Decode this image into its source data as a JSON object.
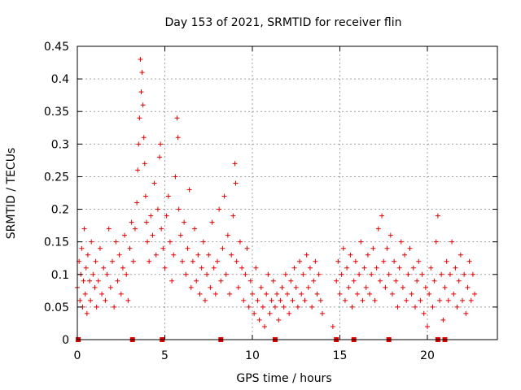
{
  "chart_data": {
    "type": "scatter",
    "title": "Day 153 of 2021, SRMTID for receiver flin",
    "xlabel": "GPS time / hours",
    "ylabel": "SRMTID / TECUs",
    "xlim": [
      0,
      24
    ],
    "ylim": [
      0,
      0.45
    ],
    "xticks": [
      0,
      5,
      10,
      15,
      20
    ],
    "xtick_labels": [
      "0",
      "5",
      "10",
      "15",
      "20"
    ],
    "yticks": [
      0,
      0.05,
      0.1,
      0.15,
      0.2,
      0.25,
      0.3,
      0.35,
      0.4,
      0.45
    ],
    "ytick_labels": [
      "0",
      "0.05",
      "0.1",
      "0.15",
      "0.2",
      "0.25",
      "0.3",
      "0.35",
      "0.4",
      "0.45"
    ],
    "grid": true,
    "marker": "plus",
    "color": "#e00000",
    "zero_markers_x": [
      0.05,
      3.15,
      4.85,
      8.2,
      11.3,
      14.8,
      15.8,
      17.8,
      20.6,
      21.0
    ],
    "series": [
      {
        "name": "SRMTID",
        "points": [
          [
            0.0,
            0.08
          ],
          [
            0.1,
            0.12
          ],
          [
            0.15,
            0.06
          ],
          [
            0.2,
            0.1
          ],
          [
            0.25,
            0.14
          ],
          [
            0.3,
            0.05
          ],
          [
            0.35,
            0.09
          ],
          [
            0.4,
            0.17
          ],
          [
            0.45,
            0.07
          ],
          [
            0.5,
            0.11
          ],
          [
            0.55,
            0.04
          ],
          [
            0.6,
            0.13
          ],
          [
            0.7,
            0.09
          ],
          [
            0.75,
            0.06
          ],
          [
            0.8,
            0.15
          ],
          [
            0.9,
            0.1
          ],
          [
            1.0,
            0.08
          ],
          [
            1.05,
            0.12
          ],
          [
            1.1,
            0.05
          ],
          [
            1.2,
            0.09
          ],
          [
            1.3,
            0.14
          ],
          [
            1.4,
            0.07
          ],
          [
            1.5,
            0.11
          ],
          [
            1.6,
            0.06
          ],
          [
            1.7,
            0.1
          ],
          [
            1.8,
            0.17
          ],
          [
            1.9,
            0.08
          ],
          [
            2.0,
            0.12
          ],
          [
            2.1,
            0.05
          ],
          [
            2.2,
            0.15
          ],
          [
            2.3,
            0.09
          ],
          [
            2.4,
            0.13
          ],
          [
            2.5,
            0.07
          ],
          [
            2.6,
            0.11
          ],
          [
            2.7,
            0.16
          ],
          [
            2.8,
            0.1
          ],
          [
            2.9,
            0.06
          ],
          [
            3.0,
            0.14
          ],
          [
            3.1,
            0.18
          ],
          [
            3.2,
            0.12
          ],
          [
            3.3,
            0.17
          ],
          [
            3.4,
            0.21
          ],
          [
            3.45,
            0.26
          ],
          [
            3.5,
            0.3
          ],
          [
            3.55,
            0.34
          ],
          [
            3.6,
            0.43
          ],
          [
            3.65,
            0.38
          ],
          [
            3.7,
            0.41
          ],
          [
            3.75,
            0.36
          ],
          [
            3.8,
            0.31
          ],
          [
            3.85,
            0.27
          ],
          [
            3.9,
            0.22
          ],
          [
            3.95,
            0.18
          ],
          [
            4.0,
            0.15
          ],
          [
            4.1,
            0.12
          ],
          [
            4.2,
            0.19
          ],
          [
            4.3,
            0.16
          ],
          [
            4.4,
            0.24
          ],
          [
            4.5,
            0.13
          ],
          [
            4.6,
            0.2
          ],
          [
            4.7,
            0.28
          ],
          [
            4.75,
            0.3
          ],
          [
            4.8,
            0.17
          ],
          [
            4.9,
            0.14
          ],
          [
            5.0,
            0.11
          ],
          [
            5.1,
            0.19
          ],
          [
            5.2,
            0.22
          ],
          [
            5.3,
            0.15
          ],
          [
            5.4,
            0.09
          ],
          [
            5.5,
            0.13
          ],
          [
            5.6,
            0.25
          ],
          [
            5.7,
            0.34
          ],
          [
            5.75,
            0.31
          ],
          [
            5.8,
            0.2
          ],
          [
            5.9,
            0.16
          ],
          [
            6.0,
            0.12
          ],
          [
            6.1,
            0.18
          ],
          [
            6.2,
            0.1
          ],
          [
            6.3,
            0.14
          ],
          [
            6.4,
            0.23
          ],
          [
            6.5,
            0.08
          ],
          [
            6.6,
            0.12
          ],
          [
            6.7,
            0.17
          ],
          [
            6.8,
            0.09
          ],
          [
            6.9,
            0.13
          ],
          [
            7.0,
            0.07
          ],
          [
            7.1,
            0.11
          ],
          [
            7.2,
            0.15
          ],
          [
            7.3,
            0.06
          ],
          [
            7.4,
            0.1
          ],
          [
            7.5,
            0.13
          ],
          [
            7.6,
            0.08
          ],
          [
            7.7,
            0.18
          ],
          [
            7.8,
            0.11
          ],
          [
            7.9,
            0.07
          ],
          [
            8.0,
            0.12
          ],
          [
            8.1,
            0.2
          ],
          [
            8.2,
            0.09
          ],
          [
            8.3,
            0.14
          ],
          [
            8.4,
            0.22
          ],
          [
            8.5,
            0.1
          ],
          [
            8.6,
            0.16
          ],
          [
            8.7,
            0.07
          ],
          [
            8.8,
            0.13
          ],
          [
            8.9,
            0.19
          ],
          [
            9.0,
            0.27
          ],
          [
            9.05,
            0.24
          ],
          [
            9.1,
            0.12
          ],
          [
            9.2,
            0.08
          ],
          [
            9.3,
            0.15
          ],
          [
            9.4,
            0.11
          ],
          [
            9.5,
            0.06
          ],
          [
            9.6,
            0.1
          ],
          [
            9.7,
            0.14
          ],
          [
            9.8,
            0.05
          ],
          [
            9.9,
            0.09
          ],
          [
            10.0,
            0.07
          ],
          [
            10.1,
            0.04
          ],
          [
            10.2,
            0.11
          ],
          [
            10.3,
            0.06
          ],
          [
            10.4,
            0.03
          ],
          [
            10.5,
            0.08
          ],
          [
            10.6,
            0.05
          ],
          [
            10.7,
            0.02
          ],
          [
            10.8,
            0.07
          ],
          [
            10.9,
            0.1
          ],
          [
            11.0,
            0.04
          ],
          [
            11.1,
            0.06
          ],
          [
            11.2,
            0.09
          ],
          [
            11.3,
            0.05
          ],
          [
            11.4,
            0.07
          ],
          [
            11.5,
            0.03
          ],
          [
            11.6,
            0.06
          ],
          [
            11.7,
            0.08
          ],
          [
            11.8,
            0.05
          ],
          [
            11.9,
            0.1
          ],
          [
            12.0,
            0.07
          ],
          [
            12.1,
            0.04
          ],
          [
            12.2,
            0.09
          ],
          [
            12.3,
            0.06
          ],
          [
            12.4,
            0.11
          ],
          [
            12.5,
            0.08
          ],
          [
            12.6,
            0.05
          ],
          [
            12.7,
            0.12
          ],
          [
            12.8,
            0.07
          ],
          [
            12.9,
            0.1
          ],
          [
            13.0,
            0.06
          ],
          [
            13.1,
            0.13
          ],
          [
            13.2,
            0.08
          ],
          [
            13.3,
            0.11
          ],
          [
            13.4,
            0.05
          ],
          [
            13.5,
            0.09
          ],
          [
            13.6,
            0.12
          ],
          [
            13.7,
            0.07
          ],
          [
            13.8,
            0.1
          ],
          [
            13.9,
            0.06
          ],
          [
            14.0,
            0.04
          ],
          [
            14.6,
            0.02
          ],
          [
            14.8,
            0.09
          ],
          [
            14.9,
            0.12
          ],
          [
            15.0,
            0.07
          ],
          [
            15.1,
            0.1
          ],
          [
            15.2,
            0.14
          ],
          [
            15.3,
            0.06
          ],
          [
            15.4,
            0.11
          ],
          [
            15.5,
            0.08
          ],
          [
            15.6,
            0.13
          ],
          [
            15.7,
            0.05
          ],
          [
            15.8,
            0.09
          ],
          [
            15.9,
            0.12
          ],
          [
            16.0,
            0.07
          ],
          [
            16.1,
            0.1
          ],
          [
            16.2,
            0.15
          ],
          [
            16.3,
            0.06
          ],
          [
            16.4,
            0.11
          ],
          [
            16.5,
            0.08
          ],
          [
            16.6,
            0.13
          ],
          [
            16.7,
            0.07
          ],
          [
            16.8,
            0.1
          ],
          [
            16.9,
            0.14
          ],
          [
            17.0,
            0.06
          ],
          [
            17.1,
            0.11
          ],
          [
            17.2,
            0.17
          ],
          [
            17.3,
            0.09
          ],
          [
            17.4,
            0.19
          ],
          [
            17.5,
            0.12
          ],
          [
            17.6,
            0.08
          ],
          [
            17.7,
            0.14
          ],
          [
            17.8,
            0.1
          ],
          [
            17.9,
            0.16
          ],
          [
            18.0,
            0.07
          ],
          [
            18.1,
            0.12
          ],
          [
            18.2,
            0.09
          ],
          [
            18.3,
            0.05
          ],
          [
            18.4,
            0.11
          ],
          [
            18.5,
            0.15
          ],
          [
            18.6,
            0.08
          ],
          [
            18.7,
            0.13
          ],
          [
            18.8,
            0.06
          ],
          [
            18.9,
            0.1
          ],
          [
            19.0,
            0.14
          ],
          [
            19.1,
            0.07
          ],
          [
            19.2,
            0.11
          ],
          [
            19.3,
            0.05
          ],
          [
            19.4,
            0.09
          ],
          [
            19.5,
            0.12
          ],
          [
            19.6,
            0.06
          ],
          [
            19.7,
            0.1
          ],
          [
            19.8,
            0.04
          ],
          [
            19.9,
            0.08
          ],
          [
            20.0,
            0.02
          ],
          [
            20.1,
            0.07
          ],
          [
            20.2,
            0.11
          ],
          [
            20.3,
            0.05
          ],
          [
            20.4,
            0.09
          ],
          [
            20.5,
            0.15
          ],
          [
            20.6,
            0.19
          ],
          [
            20.7,
            0.06
          ],
          [
            20.8,
            0.1
          ],
          [
            20.9,
            0.03
          ],
          [
            21.0,
            0.08
          ],
          [
            21.1,
            0.12
          ],
          [
            21.2,
            0.06
          ],
          [
            21.3,
            0.1
          ],
          [
            21.4,
            0.15
          ],
          [
            21.5,
            0.07
          ],
          [
            21.6,
            0.11
          ],
          [
            21.7,
            0.05
          ],
          [
            21.8,
            0.09
          ],
          [
            21.9,
            0.13
          ],
          [
            22.0,
            0.06
          ],
          [
            22.1,
            0.1
          ],
          [
            22.2,
            0.04
          ],
          [
            22.3,
            0.08
          ],
          [
            22.4,
            0.12
          ],
          [
            22.5,
            0.06
          ],
          [
            22.6,
            0.1
          ],
          [
            22.7,
            0.07
          ]
        ]
      }
    ]
  }
}
